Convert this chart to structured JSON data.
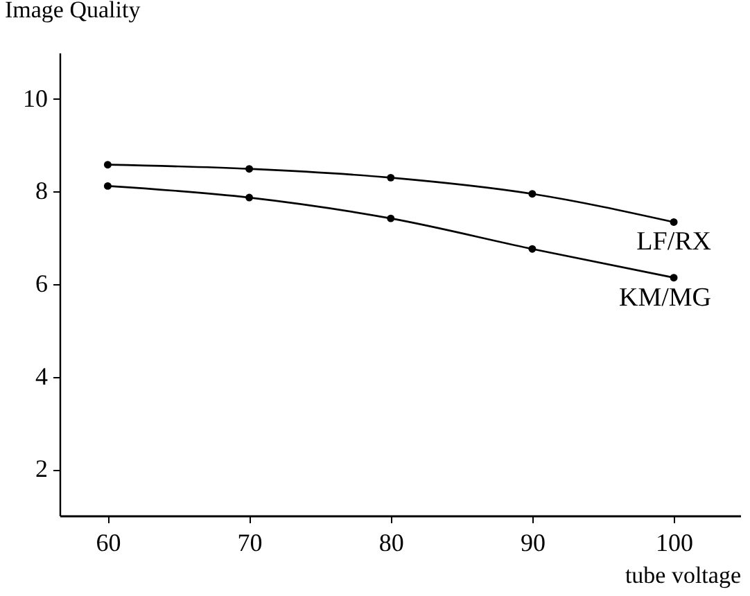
{
  "chart_data": {
    "type": "line",
    "ylabel": "Image Quality",
    "xlabel": "tube voltage",
    "x": [
      60,
      70,
      80,
      90,
      100
    ],
    "series": [
      {
        "name": "LF/RX",
        "color": "#000000",
        "values": [
          8.58,
          8.49,
          8.3,
          7.95,
          7.34
        ]
      },
      {
        "name": "KM/MG",
        "color": "#000000",
        "values": [
          8.12,
          7.87,
          7.42,
          6.76,
          6.14
        ]
      }
    ],
    "xlim": [
      56.6,
      104.7
    ],
    "xticks": [
      60,
      70,
      80,
      90,
      100
    ],
    "ylim": [
      1,
      11
    ],
    "yticks": [
      2,
      4,
      6,
      8,
      10
    ],
    "marker": "circle",
    "line_style": "solid",
    "grid": false,
    "legend": false
  }
}
